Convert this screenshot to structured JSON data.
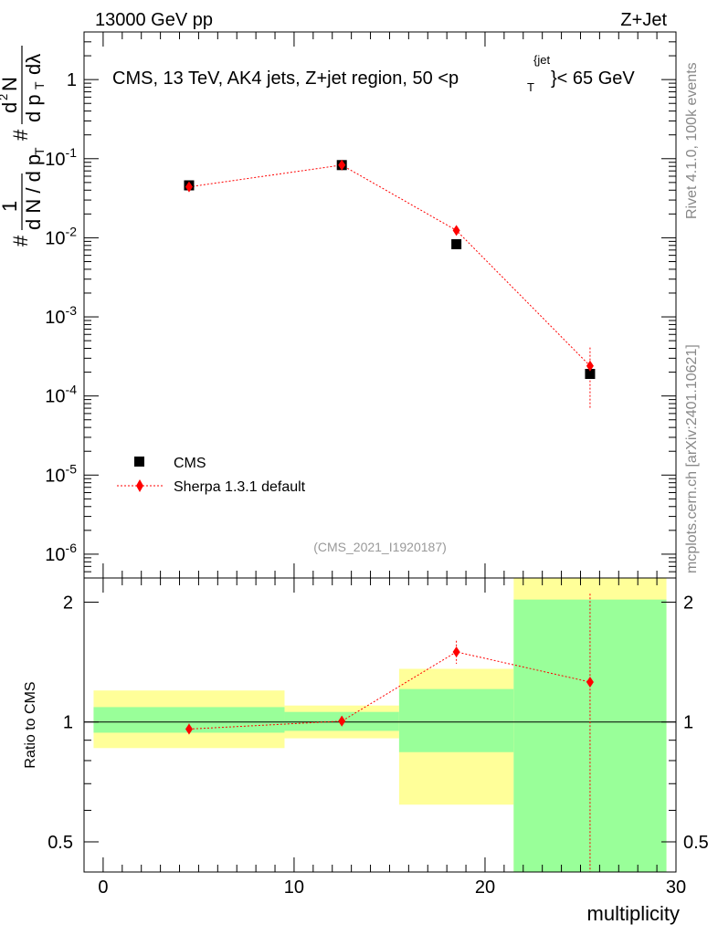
{
  "header": {
    "left": "13000 GeV pp",
    "right": "Z+Jet"
  },
  "chart_data": [
    {
      "type": "scatter",
      "panel": "main",
      "title": "CMS, 13 TeV, AK4 jets, Z+jet region, 50 <p",
      "title_sub": "T",
      "title_sup": "{jet",
      "title_end": "}< 65 GeV",
      "yscale": "log",
      "ylim": [
        5e-07,
        4
      ],
      "xlim": [
        -1,
        30
      ],
      "ylabel": "# 1/dN/dp_T # d²N/dp_T dλ",
      "y_tick_labels": [
        "1",
        "10^-1",
        "10^-2",
        "10^-3",
        "10^-4",
        "10^-5",
        "10^-6"
      ],
      "series": [
        {
          "name": "CMS",
          "color": "#000000",
          "marker": "square",
          "x": [
            4.5,
            12.5,
            18.5,
            25.5
          ],
          "y": [
            0.046,
            0.083,
            0.0083,
            0.00019
          ]
        },
        {
          "name": "Sherpa 1.3.1 default",
          "color": "#ff0000",
          "marker": "diamond",
          "x": [
            4.5,
            12.5,
            18.5,
            25.5
          ],
          "y": [
            0.044,
            0.083,
            0.0124,
            0.00024
          ],
          "yerr_low": [
            0.002,
            0.002,
            0.0006,
            0.00017
          ],
          "yerr_high": [
            0.002,
            0.002,
            0.0006,
            0.00017
          ]
        }
      ],
      "legend": [
        "CMS",
        "Sherpa 1.3.1 default"
      ],
      "legend_position": "bottom-left",
      "analysis_label": "(CMS_2021_I1920187)"
    },
    {
      "type": "scatter",
      "panel": "ratio",
      "ylabel": "Ratio to CMS",
      "xlabel": "multiplicity",
      "yscale": "log",
      "ylim": [
        0.42,
        2.3
      ],
      "xlim": [
        -1,
        30
      ],
      "y_ticks": [
        0.5,
        1,
        2
      ],
      "y_tick_labels": [
        "0.5",
        "1",
        "2"
      ],
      "x_ticks": [
        0,
        10,
        20,
        30
      ],
      "x_tick_labels": [
        "0",
        "10",
        "20",
        "30"
      ],
      "bands": [
        {
          "x0": -0.5,
          "x1": 9.5,
          "yellow_lo": 0.86,
          "yellow_hi": 1.2,
          "green_lo": 0.94,
          "green_hi": 1.09
        },
        {
          "x0": 9.5,
          "x1": 15.5,
          "yellow_lo": 0.91,
          "yellow_hi": 1.1,
          "green_lo": 0.95,
          "green_hi": 1.06
        },
        {
          "x0": 15.5,
          "x1": 21.5,
          "yellow_lo": 0.62,
          "yellow_hi": 1.36,
          "green_lo": 0.84,
          "green_hi": 1.21
        },
        {
          "x0": 21.5,
          "x1": 29.5,
          "yellow_lo": 0.42,
          "yellow_hi": 2.3,
          "green_lo": 0.42,
          "green_hi": 2.03
        }
      ],
      "series": [
        {
          "name": "Sherpa 1.3.1 default",
          "color": "#ff0000",
          "x": [
            4.5,
            12.5,
            18.5,
            25.5
          ],
          "y": [
            0.96,
            1.005,
            1.5,
            1.26
          ],
          "yerr_low": [
            0.03,
            0.03,
            0.1,
            0.84
          ],
          "yerr_high": [
            0.03,
            0.03,
            0.1,
            0.84
          ]
        }
      ]
    }
  ],
  "side_labels": {
    "rivet": "Rivet 4.1.0,  100k events",
    "source": "mcplots.cern.ch [arXiv:2401.10621]"
  }
}
